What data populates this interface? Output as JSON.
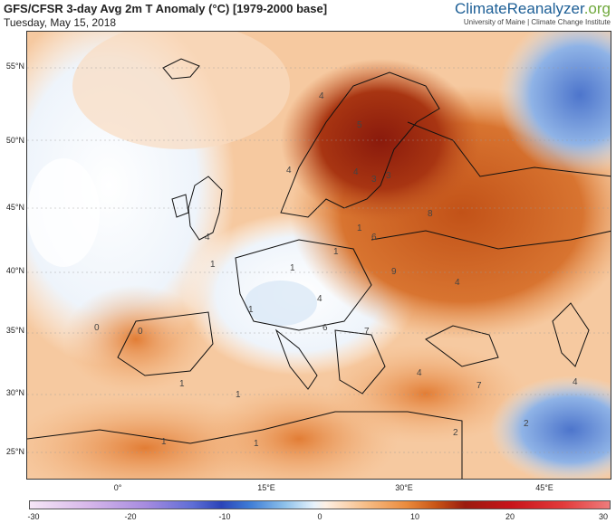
{
  "header": {
    "title": "GFS/CFSR 3-day Avg 2m T Anomaly (°C) [1979-2000 base]",
    "date": "Tuesday, May 15, 2018"
  },
  "brand": {
    "name_part1": "Climate",
    "name_part2": "Reanalyzer",
    "name_part3": ".org",
    "subtitle": "University of Maine | Climate Change Institute",
    "color_primary": "#1d5f96",
    "color_secondary": "#6fa83b"
  },
  "map": {
    "lat_labels": [
      "55°N",
      "50°N",
      "45°N",
      "40°N",
      "35°N",
      "30°N",
      "25°N"
    ],
    "lon_labels": [
      "0°",
      "15°E",
      "30°E",
      "45°E"
    ],
    "contour_labels": [
      "4",
      "5",
      "4",
      "3",
      "3",
      "4",
      "8",
      "4",
      "1",
      "1",
      "6",
      "9",
      "1",
      "1",
      "4",
      "1",
      "0",
      "0",
      "6",
      "7",
      "4",
      "4",
      "7",
      "1",
      "1",
      "2",
      "2",
      "4",
      "1",
      "1"
    ]
  },
  "colorbar": {
    "ticks": [
      "-30",
      "-20",
      "-10",
      "0",
      "10",
      "20",
      "30"
    ],
    "colors": {
      "cold_extreme": "#f6e6f6",
      "cold": "#2b44b8",
      "neutral": "#ffffff",
      "warm": "#ea8a3c",
      "hot": "#9a1b0e",
      "hot_extreme": "#ee7c7c"
    }
  }
}
